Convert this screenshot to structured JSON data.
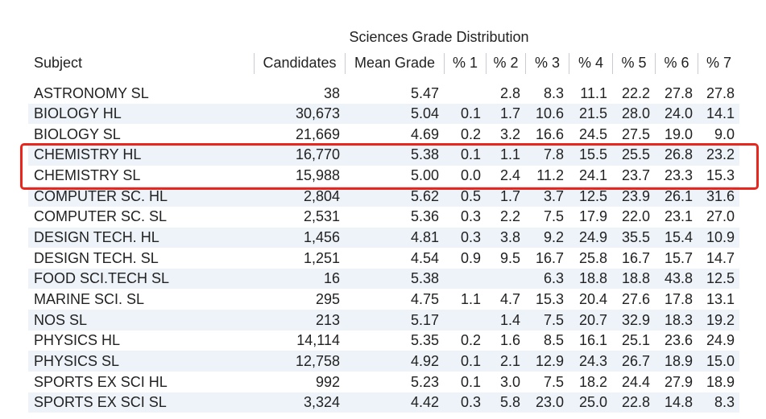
{
  "title": "Sciences Grade Distribution",
  "table": {
    "headers": [
      "Subject",
      "Candidates",
      "Mean Grade",
      "% 1",
      "% 2",
      "% 3",
      "% 4",
      "% 5",
      "% 6",
      "% 7"
    ],
    "rows": [
      [
        "ASTRONOMY SL",
        "38",
        "5.47",
        null,
        "2.8",
        "8.3",
        "11.1",
        "22.2",
        "27.8",
        "27.8"
      ],
      [
        "BIOLOGY HL",
        "30,673",
        "5.04",
        "0.1",
        "1.7",
        "10.6",
        "21.5",
        "28.0",
        "24.0",
        "14.1"
      ],
      [
        "BIOLOGY SL",
        "21,669",
        "4.69",
        "0.2",
        "3.2",
        "16.6",
        "24.5",
        "27.5",
        "19.0",
        "9.0"
      ],
      [
        "CHEMISTRY HL",
        "16,770",
        "5.38",
        "0.1",
        "1.1",
        "7.8",
        "15.5",
        "25.5",
        "26.8",
        "23.2"
      ],
      [
        "CHEMISTRY SL",
        "15,988",
        "5.00",
        "0.0",
        "2.4",
        "11.2",
        "24.1",
        "23.7",
        "23.3",
        "15.3"
      ],
      [
        "COMPUTER SC. HL",
        "2,804",
        "5.62",
        "0.5",
        "1.7",
        "3.7",
        "12.5",
        "23.9",
        "26.1",
        "31.6"
      ],
      [
        "COMPUTER SC. SL",
        "2,531",
        "5.36",
        "0.3",
        "2.2",
        "7.5",
        "17.9",
        "22.0",
        "23.1",
        "27.0"
      ],
      [
        "DESIGN TECH. HL",
        "1,456",
        "4.81",
        "0.3",
        "3.8",
        "9.2",
        "24.9",
        "35.5",
        "15.4",
        "10.9"
      ],
      [
        "DESIGN TECH. SL",
        "1,251",
        "4.54",
        "0.9",
        "9.5",
        "16.7",
        "25.8",
        "16.7",
        "15.7",
        "14.7"
      ],
      [
        "FOOD SCI.TECH SL",
        "16",
        "5.38",
        null,
        null,
        "6.3",
        "18.8",
        "18.8",
        "43.8",
        "12.5"
      ],
      [
        "MARINE SCI. SL",
        "295",
        "4.75",
        "1.1",
        "4.7",
        "15.3",
        "20.4",
        "27.6",
        "17.8",
        "13.1"
      ],
      [
        "NOS SL",
        "213",
        "5.17",
        null,
        "1.4",
        "7.5",
        "20.7",
        "32.9",
        "18.3",
        "19.2"
      ],
      [
        "PHYSICS HL",
        "14,114",
        "5.35",
        "0.2",
        "1.6",
        "8.5",
        "16.1",
        "25.1",
        "23.6",
        "24.9"
      ],
      [
        "PHYSICS SL",
        "12,758",
        "4.92",
        "0.1",
        "2.1",
        "12.9",
        "24.3",
        "26.7",
        "18.9",
        "15.0"
      ],
      [
        "SPORTS EX SCI HL",
        "992",
        "5.23",
        "0.1",
        "3.0",
        "7.5",
        "18.2",
        "24.4",
        "27.9",
        "18.9"
      ],
      [
        "SPORTS EX SCI SL",
        "3,324",
        "4.42",
        "0.3",
        "5.8",
        "23.0",
        "25.0",
        "22.8",
        "14.8",
        "8.3"
      ]
    ]
  }
}
